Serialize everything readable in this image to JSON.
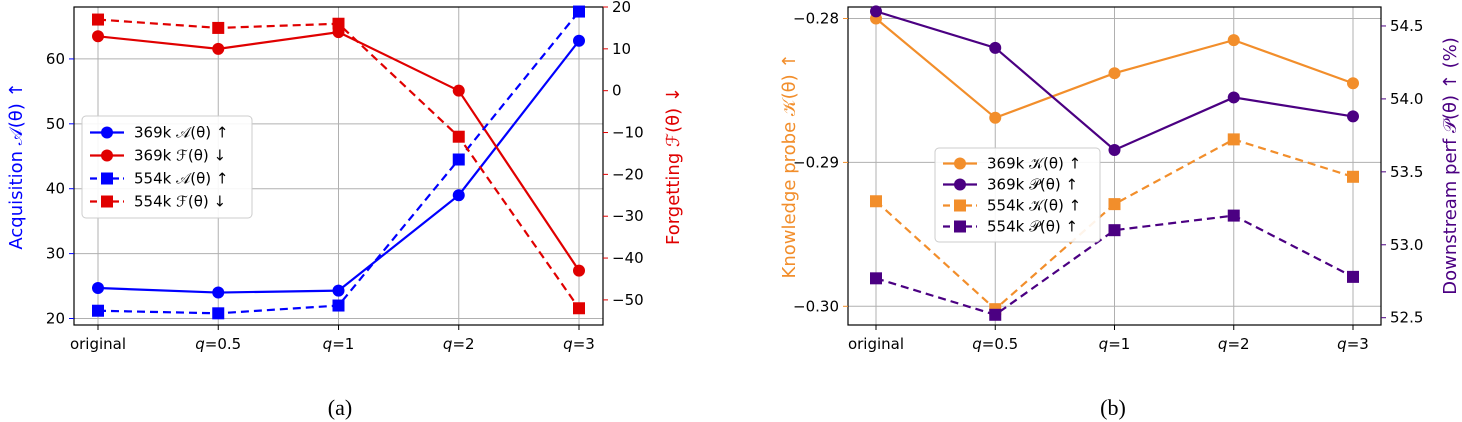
{
  "colors": {
    "a_369_acq": "#0000ff",
    "a_369_forg": "#e00000",
    "a_554_acq": "#0000ff",
    "a_554_forg": "#e00000",
    "b_K": "#f28e2b",
    "b_P": "#4b0082",
    "grid": "#b0b0b0"
  },
  "chart_data": [
    {
      "panel": "(a)",
      "type": "line",
      "categories": [
        "original",
        "q=0.5",
        "q=1",
        "q=2",
        "q=3"
      ],
      "left_axis": {
        "label": "Acquisition 𝒜(θ) ↑",
        "color": "#0000ff",
        "ylim": [
          19,
          68
        ],
        "ticks": [
          20,
          30,
          40,
          50,
          60
        ]
      },
      "right_axis": {
        "label": "Forgetting ℱ(θ) ↓",
        "color": "#e00000",
        "ylim": [
          -56,
          20
        ],
        "ticks": [
          20,
          10,
          0,
          -10,
          -20,
          -30,
          -40,
          -50
        ],
        "tick_labels": [
          "20",
          "10",
          "0",
          "−10",
          "−20",
          "−30",
          "−40",
          "−50"
        ]
      },
      "grid": true,
      "legend_position": "center-left",
      "series": [
        {
          "name": "369k 𝒜(θ) ↑",
          "axis": "left",
          "values": [
            24.7,
            24.0,
            24.3,
            39.0,
            62.8
          ],
          "style": "solid",
          "marker": "circle",
          "color": "#0000ff"
        },
        {
          "name": "369k ℱ(θ) ↓",
          "axis": "right",
          "values": [
            13.0,
            10.0,
            14.0,
            0.0,
            -43.0
          ],
          "style": "solid",
          "marker": "circle",
          "color": "#e00000"
        },
        {
          "name": "554k 𝒜(θ) ↑",
          "axis": "left",
          "values": [
            21.2,
            20.8,
            22.0,
            44.5,
            67.3
          ],
          "style": "dashed",
          "marker": "square",
          "color": "#0000ff"
        },
        {
          "name": "554k ℱ(θ) ↓",
          "axis": "right",
          "values": [
            17.0,
            15.0,
            16.0,
            -11.0,
            -52.0
          ],
          "style": "dashed",
          "marker": "square",
          "color": "#e00000"
        }
      ],
      "caption": "(a)"
    },
    {
      "panel": "(b)",
      "type": "line",
      "categories": [
        "original",
        "q=0.5",
        "q=1",
        "q=2",
        "q=3"
      ],
      "left_axis": {
        "label": "Knowledge probe 𝒦(θ) ↑",
        "color": "#f28e2b",
        "ylim": [
          -0.3013,
          -0.2792
        ],
        "ticks": [
          -0.28,
          -0.29,
          -0.3
        ],
        "tick_labels": [
          "−0.28",
          "−0.29",
          "−0.30"
        ]
      },
      "right_axis": {
        "label": "Downstream perf 𝒫(θ) ↑ (%)",
        "color": "#4b0082",
        "ylim": [
          52.45,
          54.63
        ],
        "ticks": [
          54.5,
          54.0,
          53.5,
          53.0,
          52.5
        ],
        "tick_labels": [
          "54.5",
          "54.0",
          "53.5",
          "53.0",
          "52.5"
        ]
      },
      "grid": true,
      "legend_position": "center",
      "series": [
        {
          "name": "369k 𝒦(θ) ↑",
          "axis": "left",
          "values": [
            -0.28,
            -0.2869,
            -0.2838,
            -0.2815,
            -0.2845
          ],
          "style": "solid",
          "marker": "circle",
          "color": "#f28e2b"
        },
        {
          "name": "369k 𝒫(θ) ↑",
          "axis": "right",
          "values": [
            54.6,
            54.35,
            53.65,
            54.01,
            53.88
          ],
          "style": "solid",
          "marker": "circle",
          "color": "#4b0082"
        },
        {
          "name": "554k 𝒦(θ) ↑",
          "axis": "left",
          "values": [
            -0.2927,
            -0.3002,
            -0.2929,
            -0.2884,
            -0.291
          ],
          "style": "dashed",
          "marker": "square",
          "color": "#f28e2b"
        },
        {
          "name": "554k 𝒫(θ) ↑",
          "axis": "right",
          "values": [
            52.77,
            52.52,
            53.1,
            53.2,
            52.78
          ],
          "style": "dashed",
          "marker": "square",
          "color": "#4b0082"
        }
      ],
      "caption": "(b)"
    }
  ]
}
